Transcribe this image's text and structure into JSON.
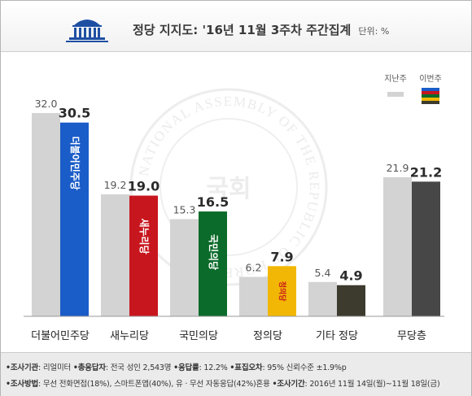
{
  "header": {
    "title": "정당 지지도: '16년 11월 3주차 주간집계",
    "unit": "단위: %"
  },
  "legend": {
    "last_week": "지난주",
    "this_week": "이번주"
  },
  "watermark": {
    "ring_text": "NATIONAL ASSEMBLY OF THE REPUBLIC OF KOREA",
    "center_text": "국회"
  },
  "colors": {
    "last_week_bar": "#d3d3d3",
    "minjoo": "#1a5cc8",
    "saenuri": "#c8161e",
    "kookmin": "#0b6b2a",
    "justice": "#f2b705",
    "others": "#3d3a2e",
    "none": "#474747"
  },
  "parties": [
    {
      "name": "더불어민주당",
      "logo_text": "더불어민주당"
    },
    {
      "name": "새누리당",
      "logo_text": "새누리당"
    },
    {
      "name": "국민의당",
      "logo_text": "국민의당"
    },
    {
      "name": "정의당",
      "logo_text": "정의당"
    },
    {
      "name": "기타 정당",
      "logo_text": ""
    },
    {
      "name": "무당층",
      "logo_text": ""
    }
  ],
  "chart_data": {
    "type": "bar",
    "title": "정당 지지도: '16년 11월 3주차 주간집계",
    "unit": "%",
    "categories": [
      "더불어민주당",
      "새누리당",
      "국민의당",
      "정의당",
      "기타 정당",
      "무당층"
    ],
    "series": [
      {
        "name": "지난주",
        "values": [
          32.0,
          19.2,
          15.3,
          6.2,
          5.4,
          21.9
        ]
      },
      {
        "name": "이번주",
        "values": [
          30.5,
          19.0,
          16.5,
          7.9,
          4.9,
          21.2
        ]
      }
    ],
    "ylim": [
      0,
      32
    ],
    "grid": false,
    "legend": "top-right"
  },
  "footer": {
    "line1": [
      {
        "label": "•조사기관",
        "value": ": 리얼미터"
      },
      {
        "label": "•총응답자",
        "value": ": 전국 성인 2,543명"
      },
      {
        "label": "•응답률",
        "value": ": 12.2%"
      },
      {
        "label": "•표집오차",
        "value": ": 95% 신뢰수준 ±1.9%p"
      }
    ],
    "line2": [
      {
        "label": "•조사방법",
        "value": ": 무선 전화면접(18%), 스마트폰앱(40%), 유 · 무선 자동응답(42%)혼용"
      },
      {
        "label": "•조사기간",
        "value": ": 2016년 11월 14일(월)~11월 18일(금)"
      }
    ]
  }
}
